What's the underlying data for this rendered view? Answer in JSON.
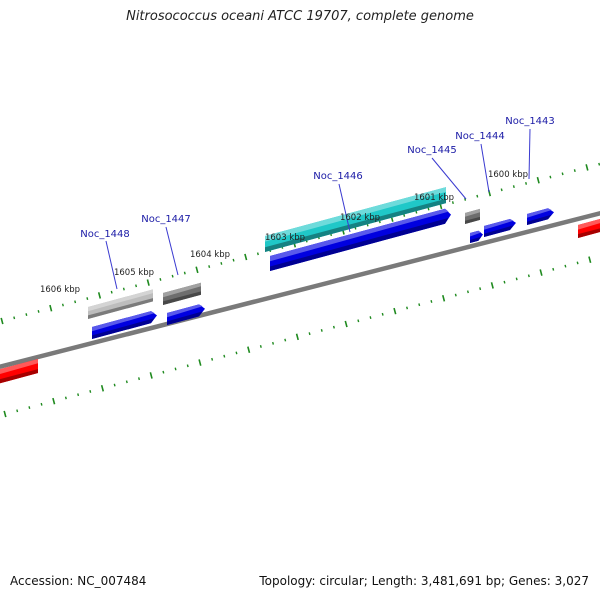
{
  "title": "Nitrosococcus oceani ATCC 19707, complete genome",
  "accession_label": "Accession: NC_007484",
  "summary_label": "Topology: circular; Length: 3,481,691 bp; Genes: 3,027",
  "colors": {
    "backbone": "#7a7a7a",
    "tick": "#1f8a1f",
    "gene_label": "#1a1aa6",
    "leader_line": "#3a3ad0"
  },
  "scale_labels": [
    "1606 kbp",
    "1605 kbp",
    "1604 kbp",
    "1603 kbp",
    "1602 kbp",
    "1601 kbp",
    "1600 kbp"
  ],
  "gene_labels": [
    "Noc_1448",
    "Noc_1447",
    "Noc_1446",
    "Noc_1445",
    "Noc_1444",
    "Noc_1443"
  ],
  "features": [
    {
      "kind": "gene",
      "strand": "forward",
      "color": "#bdbdbd"
    },
    {
      "kind": "gene",
      "strand": "forward",
      "color": "#0000e0"
    },
    {
      "kind": "gene",
      "strand": "forward",
      "color": "#6e6e6e"
    },
    {
      "kind": "gene",
      "strand": "forward",
      "color": "#0000e0"
    },
    {
      "kind": "gene",
      "strand": "forward",
      "color": "#20c8c8"
    },
    {
      "kind": "gene",
      "strand": "forward",
      "color": "#0000e0"
    },
    {
      "kind": "gene",
      "strand": "forward",
      "color": "#6e6e6e"
    },
    {
      "kind": "gene",
      "strand": "forward",
      "color": "#0000e0"
    },
    {
      "kind": "gene",
      "strand": "forward",
      "color": "#0000e0"
    },
    {
      "kind": "gene",
      "strand": "forward",
      "color": "#0000e0"
    },
    {
      "kind": "gene",
      "strand": "reverse",
      "color": "#ff0000"
    },
    {
      "kind": "gene",
      "strand": "reverse",
      "color": "#ff0000"
    }
  ]
}
